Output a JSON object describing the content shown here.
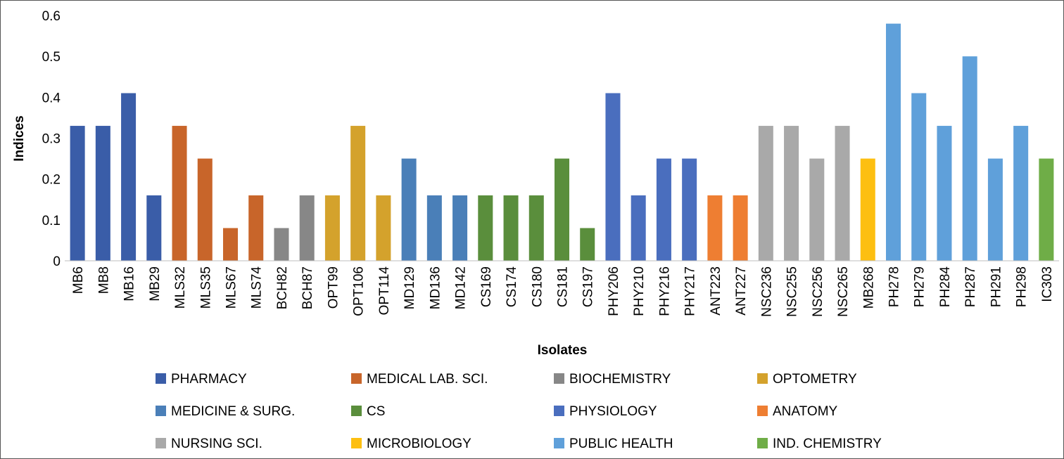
{
  "chart_data": {
    "type": "bar",
    "title": "",
    "xlabel": "Isolates",
    "ylabel": "Indices",
    "ylim": [
      0,
      0.6
    ],
    "yticks": [
      "0",
      "0.1",
      "0.2",
      "0.3",
      "0.4",
      "0.5",
      "0.6"
    ],
    "grid": false,
    "legend_position": "bottom",
    "categories": [
      "MB6",
      "MB8",
      "MB16",
      "MB29",
      "MLS32",
      "MLS35",
      "MLS67",
      "MLS74",
      "BCH82",
      "BCH87",
      "OPT99",
      "OPT106",
      "OPT114",
      "MD129",
      "MD136",
      "MD142",
      "CS169",
      "CS174",
      "CS180",
      "CS181",
      "CS197",
      "PHY206",
      "PHY210",
      "PHY216",
      "PHY217",
      "ANT223",
      "ANT227",
      "NSC236",
      "NSC255",
      "NSC256",
      "NSC265",
      "MB268",
      "PH278",
      "PH279",
      "PH284",
      "PH287",
      "PH291",
      "PH298",
      "IC303"
    ],
    "values": [
      0.33,
      0.33,
      0.41,
      0.16,
      0.33,
      0.25,
      0.08,
      0.16,
      0.08,
      0.16,
      0.16,
      0.33,
      0.16,
      0.25,
      0.16,
      0.16,
      0.16,
      0.16,
      0.16,
      0.25,
      0.08,
      0.41,
      0.16,
      0.25,
      0.25,
      0.16,
      0.16,
      0.33,
      0.33,
      0.25,
      0.33,
      0.25,
      0.58,
      0.41,
      0.33,
      0.5,
      0.25,
      0.33,
      0.25
    ],
    "groups": [
      0,
      0,
      0,
      0,
      1,
      1,
      1,
      1,
      2,
      2,
      3,
      3,
      3,
      4,
      4,
      4,
      5,
      5,
      5,
      5,
      5,
      6,
      6,
      6,
      6,
      7,
      7,
      8,
      8,
      8,
      8,
      9,
      10,
      10,
      10,
      10,
      10,
      10,
      11
    ],
    "legend": [
      {
        "name": "PHARMACY",
        "color": "#3A5DA8"
      },
      {
        "name": "MEDICAL LAB. SCI.",
        "color": "#C8652A"
      },
      {
        "name": "BIOCHEMISTRY",
        "color": "#878787"
      },
      {
        "name": "OPTOMETRY",
        "color": "#D4A22C"
      },
      {
        "name": "MEDICINE & SURG.",
        "color": "#4A7FB8"
      },
      {
        "name": "CS",
        "color": "#5A8E3C"
      },
      {
        "name": "PHYSIOLOGY",
        "color": "#4A6EBE"
      },
      {
        "name": "ANATOMY",
        "color": "#EE7E32"
      },
      {
        "name": "NURSING SCI.",
        "color": "#A9A9A9"
      },
      {
        "name": "MICROBIOLOGY",
        "color": "#FDBF11"
      },
      {
        "name": "PUBLIC HEALTH",
        "color": "#5FA0DA"
      },
      {
        "name": "IND. CHEMISTRY",
        "color": "#6FAD47"
      }
    ]
  }
}
